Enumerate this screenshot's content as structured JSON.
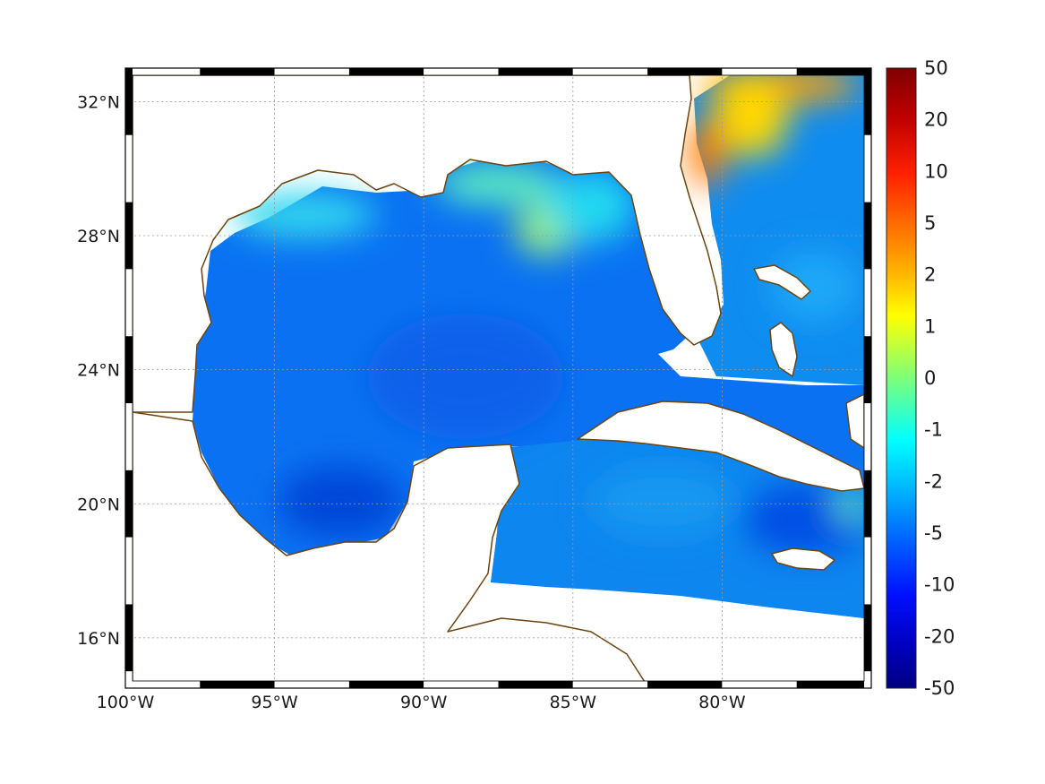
{
  "map": {
    "lon_range_deg": [
      -100,
      -75
    ],
    "lat_range_deg": [
      14.5,
      33.0
    ],
    "graticule": "dotted",
    "frame": "alternating black/white border",
    "coastline_color": "#6b4410",
    "land_color": "#ffffff",
    "x_ticks": [
      {
        "lon": -100,
        "label": "100°W"
      },
      {
        "lon": -95,
        "label": "95°W"
      },
      {
        "lon": -90,
        "label": "90°W"
      },
      {
        "lon": -85,
        "label": "85°W"
      },
      {
        "lon": -80,
        "label": "80°W"
      }
    ],
    "y_ticks": [
      {
        "lat": 32,
        "label": "32°N"
      },
      {
        "lat": 28,
        "label": "28°N"
      },
      {
        "lat": 24,
        "label": "24°N"
      },
      {
        "lat": 20,
        "label": "20°N"
      },
      {
        "lat": 16,
        "label": "16°N"
      }
    ]
  },
  "colorbar": {
    "colormap": "jet",
    "levels": [
      "50",
      "20",
      "10",
      "5",
      "2",
      "1",
      "0",
      "-1",
      "-2",
      "-5",
      "-10",
      "-20",
      "-50"
    ],
    "colors": [
      "#800000",
      "#d40000",
      "#ff3a00",
      "#ff8800",
      "#ffd000",
      "#ffff00",
      "#7dff7a",
      "#00ffff",
      "#00c8ff",
      "#0070ff",
      "#0010ff",
      "#0000c0",
      "#000080"
    ]
  }
}
